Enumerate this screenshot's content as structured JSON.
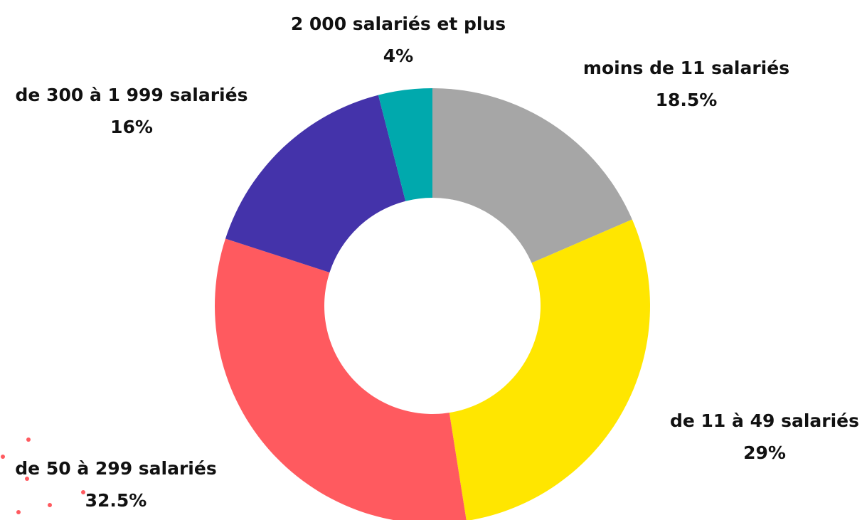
{
  "chart_data": {
    "type": "donut",
    "categories": [
      "moins de 11 salariés",
      "de 11 à 49 salariés",
      "de 50 à 299 salariés",
      "de 300 à 1 999 salariés",
      "2 000 salariés et plus"
    ],
    "values": [
      18.5,
      29,
      32.5,
      16,
      4
    ],
    "value_labels": [
      "18.5%",
      "29%",
      "32.5%",
      "16%",
      "4%"
    ],
    "colors": [
      "#a6a6a6",
      "#ffe600",
      "#ff5a5f",
      "#4433aa",
      "#00a9ad"
    ]
  }
}
